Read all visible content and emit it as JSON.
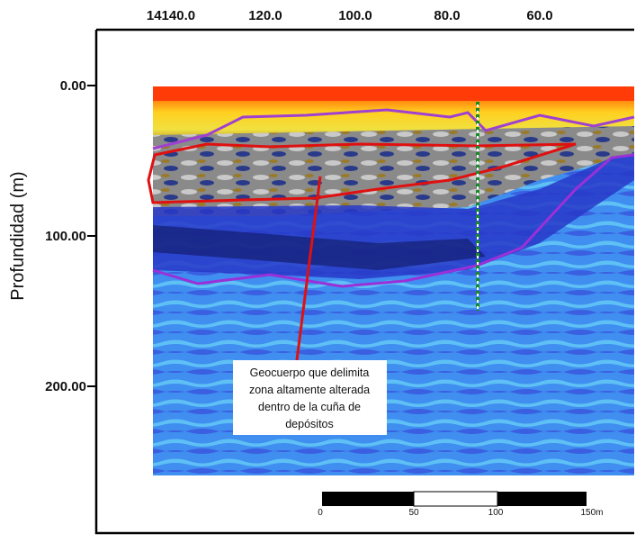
{
  "top_axis": {
    "labels": [
      "14140.0",
      "120.0",
      "100.0",
      "80.0",
      "60.0"
    ]
  },
  "left_axis": {
    "title": "Profundidad (m)",
    "labels": [
      "0.00",
      "100.00",
      "200.00"
    ]
  },
  "annotation": {
    "lines": [
      "Geocuerpo que delimita",
      "zona altamente alterada",
      "dentro de la cuña de",
      "depósitos"
    ]
  },
  "scale_bar": {
    "labels": [
      "0",
      "50",
      "100",
      "150m"
    ]
  }
}
